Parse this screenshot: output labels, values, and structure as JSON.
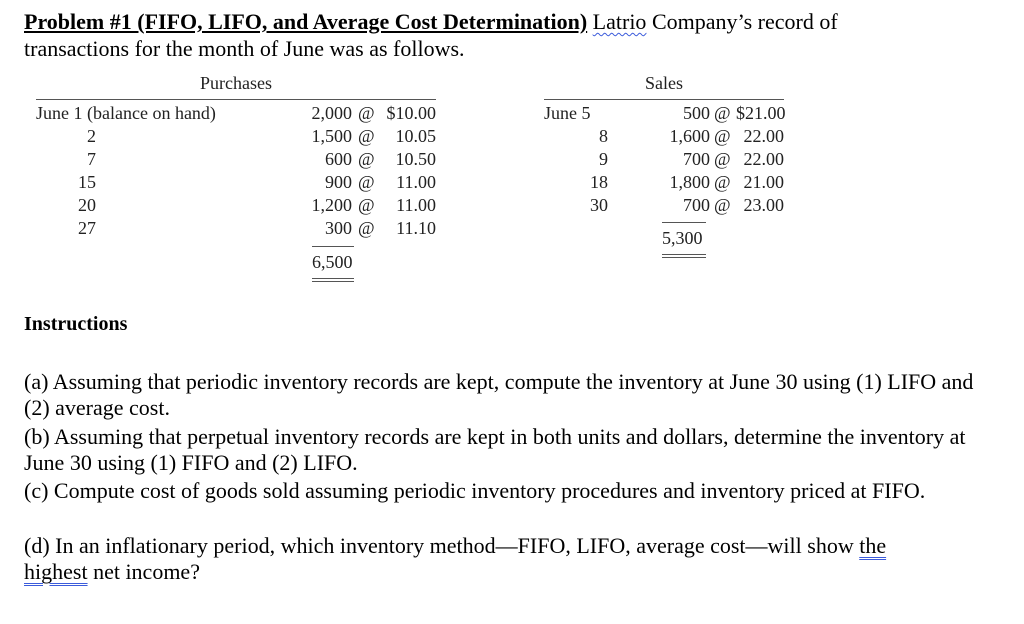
{
  "problem": {
    "label": "Problem #1 (FIFO, LIFO, and Average Cost Determination)",
    "company": "Latrio",
    "title_rest": " Company’s record of",
    "subtitle": "transactions for the month of June was as follows."
  },
  "purchases": {
    "header": "Purchases",
    "rows": [
      {
        "date": "June  1 (balance on hand)",
        "qty": "2,000",
        "at": "@",
        "price": "$10.00"
      },
      {
        "date": "2",
        "qty": "1,500",
        "at": "@",
        "price": "10.05"
      },
      {
        "date": "7",
        "qty": "600",
        "at": "@",
        "price": "10.50"
      },
      {
        "date": "15",
        "qty": "900",
        "at": "@",
        "price": "11.00"
      },
      {
        "date": "20",
        "qty": "1,200",
        "at": "@",
        "price": "11.00"
      },
      {
        "date": "27",
        "qty": "300",
        "at": "@",
        "price": "11.10"
      }
    ],
    "total": "6,500"
  },
  "sales": {
    "header": "Sales",
    "rows": [
      {
        "date": "June  5",
        "qty": "500",
        "at": "@",
        "price": "$21.00"
      },
      {
        "date": "8",
        "qty": "1,600",
        "at": "@",
        "price": "22.00"
      },
      {
        "date": "9",
        "qty": "700",
        "at": "@",
        "price": "22.00"
      },
      {
        "date": "18",
        "qty": "1,800",
        "at": "@",
        "price": "21.00"
      },
      {
        "date": "30",
        "qty": "700",
        "at": "@",
        "price": "23.00"
      }
    ],
    "total": "5,300"
  },
  "instructions": {
    "heading": "Instructions",
    "a": "(a)  Assuming that periodic inventory records are kept, compute the inventory at June 30 using (1) LIFO and (2) average cost.",
    "b": "(b)  Assuming that perpetual inventory records are kept in both units and dollars, determine the inventory at June 30 using (1) FIFO and (2) LIFO.",
    "c": "(c)  Compute cost of goods sold assuming periodic inventory procedures and inventory priced at FIFO.",
    "d_pre": "(d)  In an inflationary period, which inventory method—FIFO, LIFO, average cost—will show ",
    "d_emph1": "the",
    "d_emph2": "highest",
    "d_post": " net income?"
  }
}
